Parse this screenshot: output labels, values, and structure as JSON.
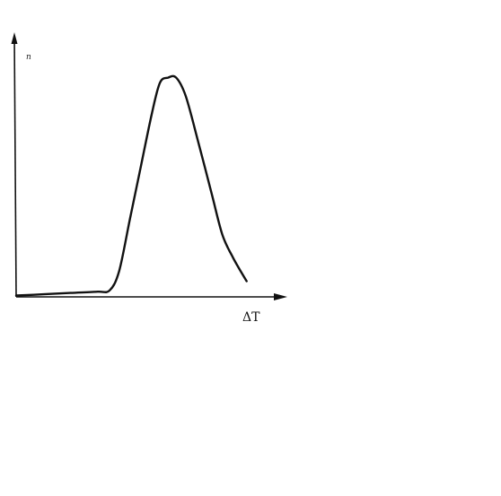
{
  "chart_data": {
    "type": "line",
    "xlabel": "ΔT",
    "ylabel": "n",
    "title": "",
    "grid": false,
    "axis_color": "#111111",
    "line_color": "#111111",
    "xlim": [
      0,
      10
    ],
    "ylim": [
      0,
      10
    ],
    "series": [
      {
        "values": [
          [
            0.0,
            0.05
          ],
          [
            1.0,
            0.1
          ],
          [
            2.0,
            0.15
          ],
          [
            3.0,
            0.2
          ],
          [
            3.45,
            0.25
          ],
          [
            3.8,
            1.0
          ],
          [
            4.2,
            3.0
          ],
          [
            4.6,
            5.0
          ],
          [
            5.0,
            7.0
          ],
          [
            5.3,
            8.2
          ],
          [
            5.6,
            8.4
          ],
          [
            5.9,
            8.4
          ],
          [
            6.25,
            7.7
          ],
          [
            6.7,
            6.0
          ],
          [
            7.2,
            4.0
          ],
          [
            7.6,
            2.4
          ],
          [
            8.0,
            1.5
          ],
          [
            8.5,
            0.6
          ]
        ]
      }
    ]
  }
}
